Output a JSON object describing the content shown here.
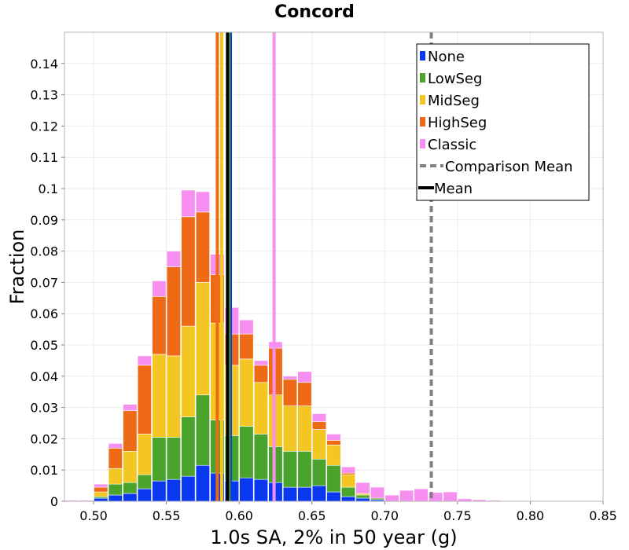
{
  "chart_data": {
    "type": "bar",
    "stacked": true,
    "title": "Concord",
    "xlabel": "1.0s SA, 2% in 50 year (g)",
    "ylabel": "Fraction",
    "xlim": [
      0.48,
      0.85
    ],
    "ylim": [
      0,
      0.15
    ],
    "grid": true,
    "legend_position": "top-right",
    "bin_width": 0.01,
    "x_ticks": [
      "0.50",
      "0.55",
      "0.60",
      "0.65",
      "0.70",
      "0.75",
      "0.80",
      "0.85"
    ],
    "x_tick_values": [
      0.5,
      0.55,
      0.6,
      0.65,
      0.7,
      0.75,
      0.8,
      0.85
    ],
    "y_ticks": [
      "0",
      "0.01",
      "0.02",
      "0.03",
      "0.04",
      "0.05",
      "0.06",
      "0.07",
      "0.08",
      "0.09",
      "0.1",
      "0.11",
      "0.12",
      "0.13",
      "0.14"
    ],
    "y_tick_values": [
      0,
      0.01,
      0.02,
      0.03,
      0.04,
      0.05,
      0.06,
      0.07,
      0.08,
      0.09,
      0.1,
      0.11,
      0.12,
      0.13,
      0.14
    ],
    "x": [
      0.485,
      0.495,
      0.505,
      0.515,
      0.525,
      0.535,
      0.545,
      0.555,
      0.565,
      0.575,
      0.585,
      0.595,
      0.605,
      0.615,
      0.625,
      0.635,
      0.645,
      0.655,
      0.665,
      0.675,
      0.685,
      0.695,
      0.705,
      0.715,
      0.725,
      0.735,
      0.745,
      0.755,
      0.765,
      0.775
    ],
    "series": [
      {
        "name": "None",
        "color": "#0a37f0",
        "values": [
          0,
          0,
          0.001,
          0.002,
          0.0025,
          0.004,
          0.0065,
          0.007,
          0.008,
          0.0115,
          0.009,
          0.0065,
          0.0075,
          0.007,
          0.006,
          0.0045,
          0.0045,
          0.005,
          0.003,
          0.0015,
          0.001,
          0.0005,
          0,
          0,
          0,
          0,
          0,
          0,
          0,
          0
        ]
      },
      {
        "name": "LowSeg",
        "color": "#4aa32a",
        "values": [
          0,
          0,
          0.0005,
          0.0035,
          0.0035,
          0.0045,
          0.014,
          0.0135,
          0.019,
          0.0225,
          0.017,
          0.0145,
          0.0165,
          0.0145,
          0.0115,
          0.0115,
          0.0115,
          0.0085,
          0.0085,
          0.003,
          0.001,
          0.0005,
          0,
          0,
          0,
          0,
          0,
          0,
          0,
          0
        ]
      },
      {
        "name": "MidSeg",
        "color": "#f3c624",
        "values": [
          0,
          0,
          0.0015,
          0.005,
          0.01,
          0.013,
          0.0265,
          0.026,
          0.029,
          0.036,
          0.031,
          0.0225,
          0.0215,
          0.0165,
          0.0165,
          0.0145,
          0.0145,
          0.0095,
          0.0065,
          0.004,
          0.0005,
          0,
          0,
          0,
          0,
          0,
          0,
          0,
          0,
          0
        ]
      },
      {
        "name": "HighSeg",
        "color": "#ef6a16",
        "values": [
          0,
          0,
          0.0015,
          0.0065,
          0.013,
          0.022,
          0.0185,
          0.0285,
          0.035,
          0.0225,
          0.0155,
          0.01,
          0.008,
          0.0055,
          0.015,
          0.0085,
          0.0075,
          0.0025,
          0.0015,
          0.0005,
          0,
          0,
          0,
          0,
          0,
          0,
          0,
          0,
          0,
          0
        ]
      },
      {
        "name": "Classic",
        "color": "#f78ff0",
        "values": [
          0.0003,
          0.0003,
          0.001,
          0.0015,
          0.002,
          0.003,
          0.005,
          0.005,
          0.0085,
          0.0065,
          0.0065,
          0.0085,
          0.0045,
          0.0015,
          0.002,
          0.001,
          0.0035,
          0.0025,
          0.002,
          0.002,
          0.0035,
          0.0035,
          0.002,
          0.0035,
          0.004,
          0.0028,
          0.003,
          0.0008,
          0.0005,
          0.0003
        ]
      }
    ],
    "series_means": [
      {
        "name": "None",
        "color": "#0a37f0",
        "value": 0.594
      },
      {
        "name": "LowSeg",
        "color": "#4aa32a",
        "value": 0.593
      },
      {
        "name": "MidSeg",
        "color": "#f3c624",
        "value": 0.588
      },
      {
        "name": "HighSeg",
        "color": "#ef6a16",
        "value": 0.585
      },
      {
        "name": "Classic",
        "color": "#f78ff0",
        "value": 0.624
      }
    ],
    "mean_ref": {
      "name": "Mean",
      "color": "#000000",
      "value": 0.592
    },
    "comparison_mean": {
      "name": "Comparison Mean",
      "color": "#808080",
      "value": 0.732
    },
    "legend": [
      {
        "label": "None",
        "color": "#0a37f0",
        "kind": "box"
      },
      {
        "label": "LowSeg",
        "color": "#4aa32a",
        "kind": "box"
      },
      {
        "label": "MidSeg",
        "color": "#f3c624",
        "kind": "box"
      },
      {
        "label": "HighSeg",
        "color": "#ef6a16",
        "kind": "box"
      },
      {
        "label": "Classic",
        "color": "#f78ff0",
        "kind": "box"
      },
      {
        "label": "Comparison Mean",
        "color": "#808080",
        "kind": "dash"
      },
      {
        "label": "Mean",
        "color": "#000000",
        "kind": "line"
      }
    ]
  }
}
